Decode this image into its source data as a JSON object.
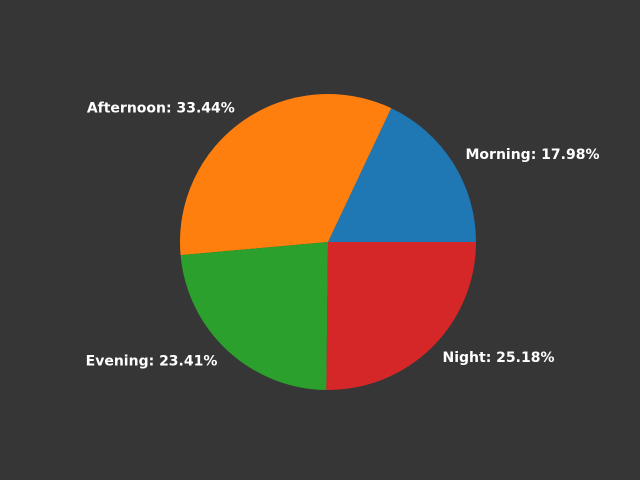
{
  "chart_data": {
    "type": "pie",
    "slices": [
      {
        "label": "Morning",
        "value": 17.98,
        "display": "Morning: 17.98%",
        "color": "#1f77b4"
      },
      {
        "label": "Afternoon",
        "value": 33.44,
        "display": "Afternoon: 33.44%",
        "color": "#ff7f0e"
      },
      {
        "label": "Evening",
        "value": 23.41,
        "display": "Evening: 23.41%",
        "color": "#2ca02c"
      },
      {
        "label": "Night",
        "value": 25.18,
        "display": "Night: 25.18%",
        "color": "#d62728"
      }
    ],
    "start_angle_deg": 0,
    "direction": "counterclockwise",
    "background": "#363636",
    "label_color": "#ffffff"
  }
}
